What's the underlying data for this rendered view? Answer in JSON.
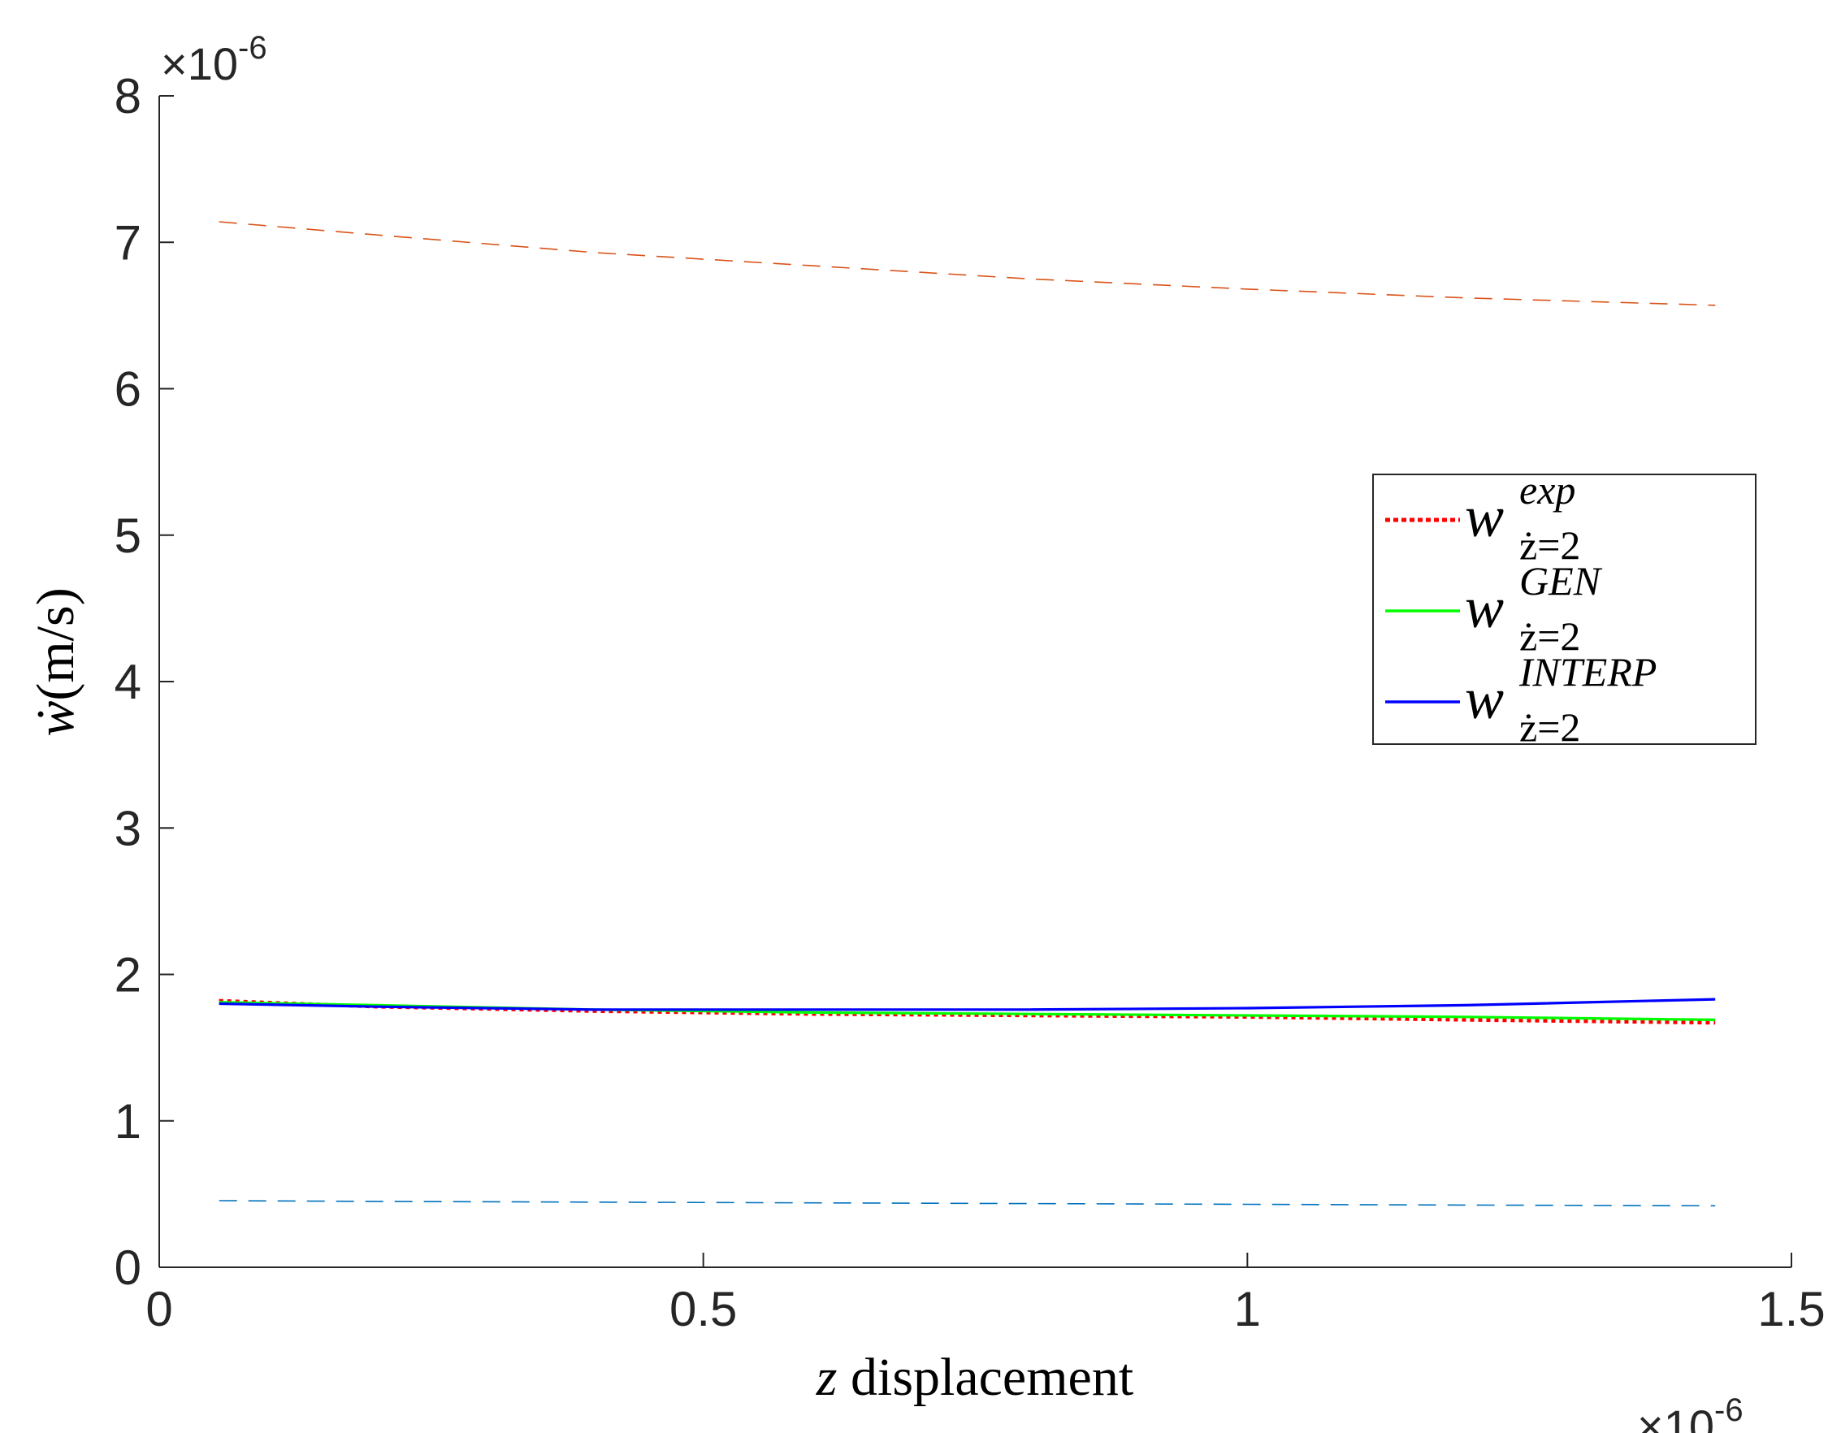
{
  "chart_data": {
    "type": "line",
    "xlabel": {
      "var": "z",
      "text": " displacement"
    },
    "ylabel": {
      "var": "ẇ",
      "text": "(m/s)"
    },
    "x_multiplier": {
      "base": "×10",
      "exp": "-6"
    },
    "y_multiplier": {
      "base": "×10",
      "exp": "-6"
    },
    "xlim": [
      0,
      1.5
    ],
    "ylim": [
      0,
      8
    ],
    "xticks": [
      0,
      0.5,
      1,
      1.5
    ],
    "xtick_labels": [
      "0",
      "0.5",
      "1",
      "1.5"
    ],
    "yticks": [
      0,
      1,
      2,
      3,
      4,
      5,
      6,
      7,
      8
    ],
    "ytick_labels": [
      "0",
      "1",
      "2",
      "3",
      "4",
      "5",
      "6",
      "7",
      "8"
    ],
    "grid": false,
    "legend_position": "right",
    "series": [
      {
        "name": "w^{exp}_{ż=2}",
        "legend": {
          "base": "w",
          "sup": "exp",
          "sub": "ż=2"
        },
        "color": "#ff0000",
        "style": "dotted",
        "in_legend": true,
        "x": [
          0.055,
          0.2,
          0.4,
          0.6,
          0.8,
          1.0,
          1.2,
          1.43
        ],
        "y": [
          1.82,
          1.78,
          1.75,
          1.73,
          1.72,
          1.71,
          1.69,
          1.67
        ]
      },
      {
        "name": "w^{GEN}_{ż=2}",
        "legend": {
          "base": "w",
          "sup": "GEN",
          "sub": "ż=2"
        },
        "color": "#00ff00",
        "style": "solid",
        "in_legend": true,
        "x": [
          0.055,
          0.2,
          0.4,
          0.6,
          0.8,
          1.0,
          1.2,
          1.43
        ],
        "y": [
          1.81,
          1.79,
          1.76,
          1.74,
          1.73,
          1.72,
          1.71,
          1.69
        ]
      },
      {
        "name": "w^{INTERP}_{ż=2}",
        "legend": {
          "base": "w",
          "sup": "INTERP",
          "sub": "ż=2"
        },
        "color": "#0000ff",
        "style": "solid",
        "in_legend": true,
        "x": [
          0.055,
          0.2,
          0.4,
          0.6,
          0.8,
          1.0,
          1.2,
          1.43
        ],
        "y": [
          1.8,
          1.78,
          1.76,
          1.76,
          1.76,
          1.77,
          1.79,
          1.83
        ]
      },
      {
        "color": "#d95319",
        "style": "dashed",
        "in_legend": false,
        "x": [
          0.055,
          0.2,
          0.4,
          0.6,
          0.8,
          1.0,
          1.2,
          1.43
        ],
        "y": [
          7.14,
          7.05,
          6.93,
          6.84,
          6.75,
          6.68,
          6.62,
          6.57
        ]
      },
      {
        "color": "#0072bd",
        "style": "dashed",
        "in_legend": false,
        "x": [
          0.055,
          0.2,
          0.4,
          0.6,
          0.8,
          1.0,
          1.2,
          1.43
        ],
        "y": [
          0.455,
          0.45,
          0.445,
          0.44,
          0.435,
          0.43,
          0.425,
          0.42
        ]
      }
    ]
  }
}
